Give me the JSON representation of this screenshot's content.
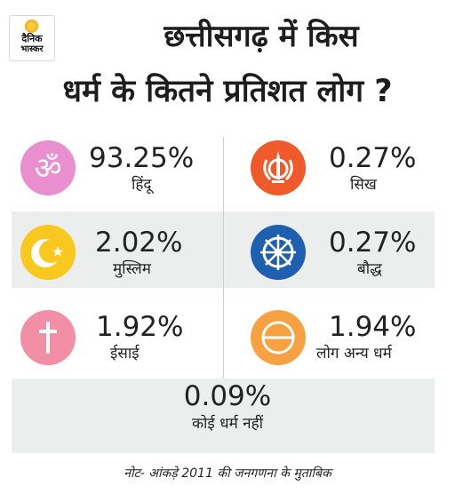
{
  "logo": {
    "line1": "दैनिक",
    "line2": "भास्कर"
  },
  "title": {
    "line1": "छत्तीसगढ़ में किस",
    "line2": "धर्म के कितने प्रतिशत लोग ?"
  },
  "chart_data": {
    "type": "table",
    "title": "छत्तीसगढ़ में किस धर्म के कितने प्रतिशत लोग ?",
    "categories": [
      "हिंदू",
      "सिख",
      "मुस्लिम",
      "बौद्ध",
      "ईसाई",
      "लोग अन्य धर्म",
      "कोई धर्म नहीं"
    ],
    "values": [
      93.25,
      0.27,
      2.02,
      0.27,
      1.92,
      1.94,
      0.09
    ],
    "items": [
      {
        "label": "हिंदू",
        "value": "93.25%",
        "icon": "om-icon",
        "color": "#e98fd0"
      },
      {
        "label": "सिख",
        "value": "0.27%",
        "icon": "khanda-icon",
        "color": "#f05a2a"
      },
      {
        "label": "मुस्लिम",
        "value": "2.02%",
        "icon": "crescent-star-icon",
        "color": "#f9c81e"
      },
      {
        "label": "बौद्ध",
        "value": "0.27%",
        "icon": "dharma-wheel-icon",
        "color": "#1f5fb0"
      },
      {
        "label": "ईसाई",
        "value": "1.92%",
        "icon": "cross-icon",
        "color": "#f28fa7"
      },
      {
        "label": "लोग अन्य धर्म",
        "value": "1.94%",
        "icon": "other-religion-icon",
        "color": "#f7a142"
      },
      {
        "label": "कोई धर्म नहीं",
        "value": "0.09%"
      }
    ]
  },
  "note": "नोट- आंकड़े 2011 की जनगणना के मुताबिक"
}
